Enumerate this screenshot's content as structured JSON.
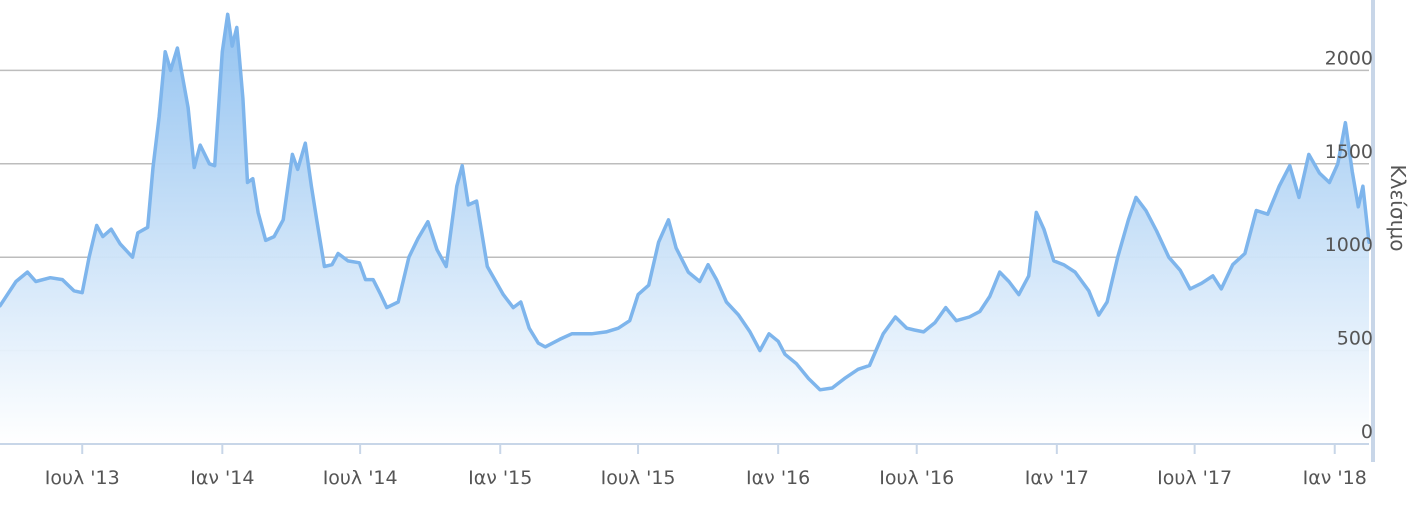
{
  "chart_data": {
    "type": "area",
    "title": "",
    "xlabel": "",
    "ylabel": "Κλείσιμο",
    "xlim": [
      "2013-03-15",
      "2018-02-15"
    ],
    "ylim": [
      0,
      2350
    ],
    "grid": true,
    "colors": {
      "line": "#7eb5ec",
      "fill_top": "#8ec0f0",
      "fill_bottom": "#ffffff",
      "grid": "#bdbdbd",
      "axis": "#c8d6e8"
    },
    "x_ticks": [
      {
        "date": "2013-07-01",
        "label": "Ιουλ '13"
      },
      {
        "date": "2014-01-01",
        "label": "Ιαν '14"
      },
      {
        "date": "2014-07-01",
        "label": "Ιουλ '14"
      },
      {
        "date": "2015-01-01",
        "label": "Ιαν '15"
      },
      {
        "date": "2015-07-01",
        "label": "Ιουλ '15"
      },
      {
        "date": "2016-01-01",
        "label": "Ιαν '16"
      },
      {
        "date": "2016-07-01",
        "label": "Ιουλ '16"
      },
      {
        "date": "2017-01-01",
        "label": "Ιαν '17"
      },
      {
        "date": "2017-07-01",
        "label": "Ιουλ '17"
      },
      {
        "date": "2018-01-01",
        "label": "Ιαν '18"
      }
    ],
    "y_ticks": [
      {
        "value": 0,
        "label": "0"
      },
      {
        "value": 500,
        "label": "500"
      },
      {
        "value": 1000,
        "label": "1000"
      },
      {
        "value": 1500,
        "label": "1500"
      },
      {
        "value": 2000,
        "label": "2000"
      }
    ],
    "series": [
      {
        "points": [
          [
            "2013-03-15",
            740
          ],
          [
            "2013-04-05",
            870
          ],
          [
            "2013-04-20",
            920
          ],
          [
            "2013-05-01",
            870
          ],
          [
            "2013-05-20",
            890
          ],
          [
            "2013-06-05",
            880
          ],
          [
            "2013-06-20",
            820
          ],
          [
            "2013-07-01",
            810
          ],
          [
            "2013-07-10",
            1000
          ],
          [
            "2013-07-20",
            1170
          ],
          [
            "2013-07-28",
            1110
          ],
          [
            "2013-08-08",
            1150
          ],
          [
            "2013-08-20",
            1070
          ],
          [
            "2013-09-05",
            1000
          ],
          [
            "2013-09-12",
            1130
          ],
          [
            "2013-09-25",
            1160
          ],
          [
            "2013-10-02",
            1480
          ],
          [
            "2013-10-10",
            1750
          ],
          [
            "2013-10-18",
            2100
          ],
          [
            "2013-10-25",
            2000
          ],
          [
            "2013-11-03",
            2120
          ],
          [
            "2013-11-10",
            1960
          ],
          [
            "2013-11-17",
            1800
          ],
          [
            "2013-11-25",
            1480
          ],
          [
            "2013-12-03",
            1600
          ],
          [
            "2013-12-15",
            1500
          ],
          [
            "2013-12-22",
            1490
          ],
          [
            "2014-01-01",
            2100
          ],
          [
            "2014-01-08",
            2300
          ],
          [
            "2014-01-14",
            2130
          ],
          [
            "2014-01-20",
            2230
          ],
          [
            "2014-01-28",
            1850
          ],
          [
            "2014-02-03",
            1400
          ],
          [
            "2014-02-10",
            1420
          ],
          [
            "2014-02-17",
            1240
          ],
          [
            "2014-02-27",
            1090
          ],
          [
            "2014-03-10",
            1110
          ],
          [
            "2014-03-22",
            1200
          ],
          [
            "2014-04-03",
            1550
          ],
          [
            "2014-04-10",
            1470
          ],
          [
            "2014-04-20",
            1610
          ],
          [
            "2014-04-28",
            1380
          ],
          [
            "2014-05-05",
            1200
          ],
          [
            "2014-05-15",
            950
          ],
          [
            "2014-05-25",
            960
          ],
          [
            "2014-06-02",
            1020
          ],
          [
            "2014-06-15",
            980
          ],
          [
            "2014-06-30",
            970
          ],
          [
            "2014-07-08",
            880
          ],
          [
            "2014-07-18",
            880
          ],
          [
            "2014-07-28",
            800
          ],
          [
            "2014-08-05",
            730
          ],
          [
            "2014-08-20",
            760
          ],
          [
            "2014-09-03",
            1000
          ],
          [
            "2014-09-15",
            1100
          ],
          [
            "2014-09-28",
            1190
          ],
          [
            "2014-10-10",
            1040
          ],
          [
            "2014-10-22",
            950
          ],
          [
            "2014-11-05",
            1380
          ],
          [
            "2014-11-12",
            1490
          ],
          [
            "2014-11-20",
            1280
          ],
          [
            "2014-12-01",
            1300
          ],
          [
            "2014-12-15",
            950
          ],
          [
            "2015-01-05",
            800
          ],
          [
            "2015-01-18",
            730
          ],
          [
            "2015-01-28",
            760
          ],
          [
            "2015-02-08",
            620
          ],
          [
            "2015-02-20",
            540
          ],
          [
            "2015-03-01",
            520
          ],
          [
            "2015-03-20",
            560
          ],
          [
            "2015-04-05",
            590
          ],
          [
            "2015-05-01",
            590
          ],
          [
            "2015-05-20",
            600
          ],
          [
            "2015-06-05",
            620
          ],
          [
            "2015-06-20",
            660
          ],
          [
            "2015-07-01",
            800
          ],
          [
            "2015-07-15",
            850
          ],
          [
            "2015-07-28",
            1080
          ],
          [
            "2015-08-10",
            1200
          ],
          [
            "2015-08-20",
            1050
          ],
          [
            "2015-09-05",
            920
          ],
          [
            "2015-09-20",
            870
          ],
          [
            "2015-10-01",
            960
          ],
          [
            "2015-10-12",
            880
          ],
          [
            "2015-10-25",
            760
          ],
          [
            "2015-11-10",
            690
          ],
          [
            "2015-11-25",
            600
          ],
          [
            "2015-12-08",
            500
          ],
          [
            "2015-12-20",
            590
          ],
          [
            "2016-01-01",
            550
          ],
          [
            "2016-01-10",
            480
          ],
          [
            "2016-01-25",
            430
          ],
          [
            "2016-02-10",
            350
          ],
          [
            "2016-02-25",
            290
          ],
          [
            "2016-03-12",
            300
          ],
          [
            "2016-03-28",
            350
          ],
          [
            "2016-04-15",
            400
          ],
          [
            "2016-04-30",
            420
          ],
          [
            "2016-05-18",
            590
          ],
          [
            "2016-06-03",
            680
          ],
          [
            "2016-06-18",
            620
          ],
          [
            "2016-06-28",
            610
          ],
          [
            "2016-07-10",
            600
          ],
          [
            "2016-07-25",
            650
          ],
          [
            "2016-08-08",
            730
          ],
          [
            "2016-08-22",
            660
          ],
          [
            "2016-09-08",
            680
          ],
          [
            "2016-09-22",
            710
          ],
          [
            "2016-10-05",
            790
          ],
          [
            "2016-10-18",
            920
          ],
          [
            "2016-10-30",
            870
          ],
          [
            "2016-11-12",
            800
          ],
          [
            "2016-11-25",
            900
          ],
          [
            "2016-12-05",
            1240
          ],
          [
            "2016-12-15",
            1150
          ],
          [
            "2016-12-28",
            980
          ],
          [
            "2017-01-10",
            960
          ],
          [
            "2017-01-25",
            920
          ],
          [
            "2017-02-12",
            820
          ],
          [
            "2017-02-25",
            690
          ],
          [
            "2017-03-08",
            760
          ],
          [
            "2017-03-22",
            1000
          ],
          [
            "2017-04-05",
            1200
          ],
          [
            "2017-04-15",
            1320
          ],
          [
            "2017-04-28",
            1250
          ],
          [
            "2017-05-12",
            1140
          ],
          [
            "2017-05-28",
            1000
          ],
          [
            "2017-06-12",
            930
          ],
          [
            "2017-06-25",
            830
          ],
          [
            "2017-07-10",
            860
          ],
          [
            "2017-07-25",
            900
          ],
          [
            "2017-08-05",
            830
          ],
          [
            "2017-08-20",
            960
          ],
          [
            "2017-09-05",
            1020
          ],
          [
            "2017-09-20",
            1250
          ],
          [
            "2017-10-05",
            1230
          ],
          [
            "2017-10-20",
            1380
          ],
          [
            "2017-11-03",
            1490
          ],
          [
            "2017-11-15",
            1320
          ],
          [
            "2017-11-28",
            1550
          ],
          [
            "2017-12-12",
            1450
          ],
          [
            "2017-12-25",
            1400
          ],
          [
            "2018-01-05",
            1500
          ],
          [
            "2018-01-15",
            1720
          ],
          [
            "2018-01-24",
            1460
          ],
          [
            "2018-02-01",
            1270
          ],
          [
            "2018-02-07",
            1380
          ],
          [
            "2018-02-15",
            1080
          ]
        ]
      }
    ]
  }
}
